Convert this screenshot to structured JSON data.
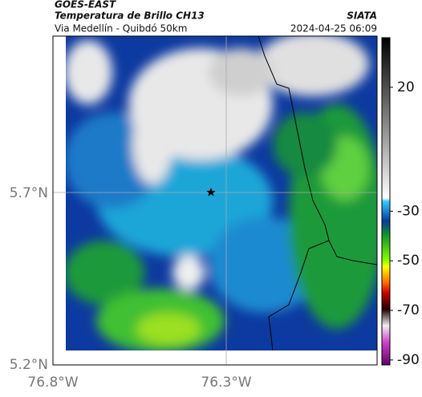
{
  "header": {
    "source": "GOES-EAST",
    "title": "Temperatura de Brillo CH13",
    "subtitle": "Via Medellín - Quibdó 50km",
    "org": "SIATA",
    "datetime": "2024-04-25 06:09"
  },
  "axes": {
    "yticks": [
      "5.7°N",
      "5.2°N"
    ],
    "xticks": [
      "76.8°W",
      "76.3°W"
    ]
  },
  "colorbar": {
    "clim": [
      -92,
      40
    ],
    "ticks": [
      20,
      -30,
      -50,
      -70,
      -90
    ]
  }
}
